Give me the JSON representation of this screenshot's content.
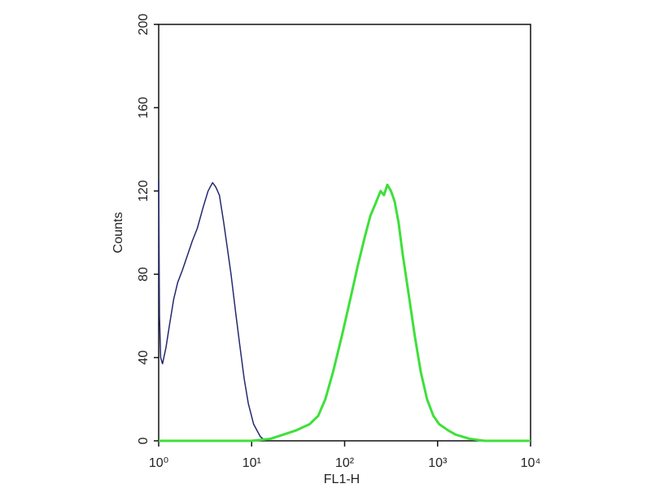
{
  "chart_data": {
    "type": "line",
    "xlabel": "FL1-H",
    "ylabel": "Counts",
    "xscale": "log",
    "xlim": [
      1,
      10000
    ],
    "ylim": [
      0,
      200
    ],
    "xticks": [
      {
        "value": 1,
        "label": "10⁰"
      },
      {
        "value": 10,
        "label": "10¹"
      },
      {
        "value": 100,
        "label": "10²"
      },
      {
        "value": 1000,
        "label": "10³"
      },
      {
        "value": 10000,
        "label": "10⁴"
      }
    ],
    "yticks": [
      0,
      40,
      80,
      120,
      160,
      200
    ],
    "series": [
      {
        "color": "#23286e",
        "width": 1.5,
        "x": [
          1,
          1.02,
          1.05,
          1.1,
          1.2,
          1.3,
          1.45,
          1.6,
          1.8,
          2,
          2.3,
          2.6,
          3,
          3.4,
          3.8,
          4.1,
          4.5,
          5,
          5.5,
          6,
          6.8,
          7.5,
          8.3,
          9.2,
          10.5,
          12.4,
          14
        ],
        "values": [
          125,
          60,
          40,
          37,
          45,
          55,
          68,
          76,
          82,
          88,
          96,
          102,
          112,
          120,
          124,
          122,
          118,
          105,
          92,
          80,
          60,
          45,
          30,
          18,
          8,
          2,
          0
        ]
      },
      {
        "color": "#3ee03a",
        "width": 3,
        "x": [
          1,
          10,
          16,
          22,
          30,
          42,
          52,
          62,
          75,
          93,
          115,
          140,
          165,
          189,
          215,
          244,
          265,
          288,
          315,
          345,
          380,
          420,
          490,
          570,
          660,
          770,
          900,
          1040,
          1300,
          1560,
          2200,
          3200,
          10000
        ],
        "values": [
          0,
          0,
          1,
          3,
          5,
          8,
          12,
          20,
          33,
          50,
          68,
          85,
          98,
          108,
          114,
          120,
          118,
          123,
          120,
          115,
          105,
          90,
          70,
          50,
          33,
          20,
          12,
          8,
          5,
          3,
          1,
          0,
          0
        ]
      }
    ]
  }
}
